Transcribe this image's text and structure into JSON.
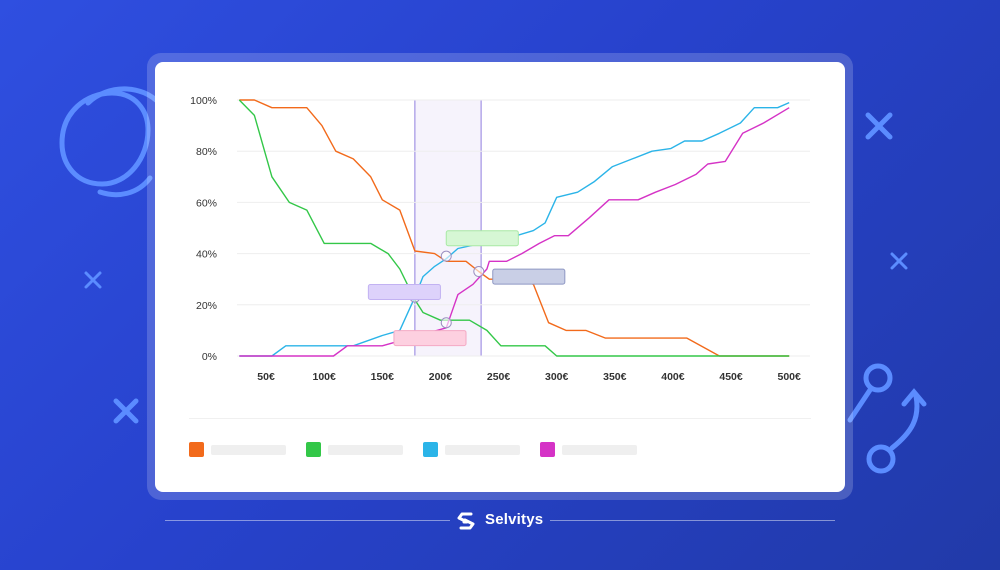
{
  "colors": {
    "background": "#2b47d6",
    "decor": "#5b8cff",
    "orange": "#f26a1b",
    "green": "#33c748",
    "cyan": "#2bb4e8",
    "magenta": "#d533c6",
    "band_line": "#a99ae6",
    "band_fill": "#f6f3fc",
    "grid": "#eeeeee",
    "tick_text": "#333333"
  },
  "brand": {
    "name": "Selvitys",
    "icon": "selvitys-logo-icon"
  },
  "legend": {
    "items": [
      {
        "color": "#f26a1b"
      },
      {
        "color": "#33c748"
      },
      {
        "color": "#2bb4e8"
      },
      {
        "color": "#d533c6"
      }
    ]
  },
  "chart_data": {
    "type": "line",
    "title": "",
    "xlabel": "",
    "ylabel": "",
    "xlim": [
      25,
      505
    ],
    "ylim": [
      0,
      100
    ],
    "x_ticks": [
      50,
      100,
      150,
      200,
      250,
      300,
      350,
      400,
      450,
      500
    ],
    "x_tick_labels": [
      "50€",
      "100€",
      "150€",
      "200€",
      "250€",
      "300€",
      "350€",
      "400€",
      "450€",
      "500€"
    ],
    "y_ticks": [
      0,
      20,
      40,
      60,
      80,
      100
    ],
    "y_tick_labels": [
      "0%",
      "20%",
      "40%",
      "60%",
      "80%",
      "100%"
    ],
    "grid": true,
    "legend_position": "bottom",
    "highlight_band": [
      178,
      235
    ],
    "series": [
      {
        "color": "#f26a1b",
        "points": [
          [
            27,
            100
          ],
          [
            40,
            100
          ],
          [
            55,
            97
          ],
          [
            85,
            97
          ],
          [
            98,
            90
          ],
          [
            110,
            80
          ],
          [
            125,
            77
          ],
          [
            140,
            70
          ],
          [
            150,
            61
          ],
          [
            165,
            57
          ],
          [
            178,
            41
          ],
          [
            195,
            40
          ],
          [
            205,
            37
          ],
          [
            222,
            37
          ],
          [
            233,
            33
          ],
          [
            242,
            30
          ],
          [
            268,
            30
          ],
          [
            280,
            28
          ],
          [
            293,
            13
          ],
          [
            308,
            10
          ],
          [
            325,
            10
          ],
          [
            342,
            7
          ],
          [
            352,
            7
          ],
          [
            400,
            7
          ],
          [
            412,
            7
          ],
          [
            440,
            0
          ],
          [
            500,
            0
          ]
        ]
      },
      {
        "color": "#33c748",
        "points": [
          [
            27,
            100
          ],
          [
            40,
            94
          ],
          [
            55,
            70
          ],
          [
            70,
            60
          ],
          [
            85,
            57
          ],
          [
            100,
            44
          ],
          [
            140,
            44
          ],
          [
            155,
            40
          ],
          [
            165,
            34
          ],
          [
            178,
            22
          ],
          [
            185,
            17
          ],
          [
            200,
            14
          ],
          [
            225,
            14
          ],
          [
            240,
            10
          ],
          [
            252,
            4
          ],
          [
            268,
            4
          ],
          [
            290,
            4
          ],
          [
            300,
            0
          ],
          [
            500,
            0
          ]
        ]
      },
      {
        "color": "#2bb4e8",
        "points": [
          [
            27,
            0
          ],
          [
            55,
            0
          ],
          [
            67,
            4
          ],
          [
            125,
            4
          ],
          [
            150,
            8
          ],
          [
            165,
            10
          ],
          [
            178,
            23
          ],
          [
            185,
            31
          ],
          [
            195,
            35
          ],
          [
            205,
            38
          ],
          [
            215,
            42
          ],
          [
            235,
            44
          ],
          [
            258,
            46
          ],
          [
            280,
            49
          ],
          [
            290,
            52
          ],
          [
            300,
            62
          ],
          [
            318,
            64
          ],
          [
            332,
            68
          ],
          [
            348,
            74
          ],
          [
            365,
            77
          ],
          [
            382,
            80
          ],
          [
            398,
            81
          ],
          [
            410,
            84
          ],
          [
            425,
            84
          ],
          [
            440,
            87
          ],
          [
            458,
            91
          ],
          [
            470,
            97
          ],
          [
            490,
            97
          ],
          [
            500,
            99
          ]
        ]
      },
      {
        "color": "#d533c6",
        "points": [
          [
            27,
            0
          ],
          [
            108,
            0
          ],
          [
            120,
            4
          ],
          [
            150,
            4
          ],
          [
            205,
            11
          ],
          [
            215,
            24
          ],
          [
            228,
            28
          ],
          [
            240,
            34
          ],
          [
            242,
            37
          ],
          [
            257,
            37
          ],
          [
            270,
            40
          ],
          [
            285,
            44
          ],
          [
            298,
            47
          ],
          [
            310,
            47
          ],
          [
            328,
            54
          ],
          [
            345,
            61
          ],
          [
            358,
            61
          ],
          [
            370,
            61
          ],
          [
            385,
            64
          ],
          [
            402,
            67
          ],
          [
            420,
            71
          ],
          [
            430,
            75
          ],
          [
            445,
            76
          ],
          [
            460,
            87
          ],
          [
            478,
            91
          ],
          [
            500,
            97
          ]
        ]
      }
    ],
    "markers": [
      {
        "x": 178,
        "y": 23
      },
      {
        "x": 205,
        "y": 13
      },
      {
        "x": 233,
        "y": 33
      },
      {
        "x": 205,
        "y": 39
      }
    ],
    "annotations": [
      {
        "x": 138,
        "y": 25,
        "w": 62,
        "color_fill": "#ddd2fb",
        "color_stroke": "#c2b2f2"
      },
      {
        "x": 205,
        "y": 46,
        "w": 62,
        "color_fill": "#d6f7d4",
        "color_stroke": "#a8e8a4"
      },
      {
        "x": 160,
        "y": 7,
        "w": 62,
        "color_fill": "#fdd0e0",
        "color_stroke": "#f4a9c4"
      },
      {
        "x": 245,
        "y": 31,
        "w": 62,
        "color_fill": "#c9cfe6",
        "color_stroke": "#8e97c3"
      }
    ]
  }
}
